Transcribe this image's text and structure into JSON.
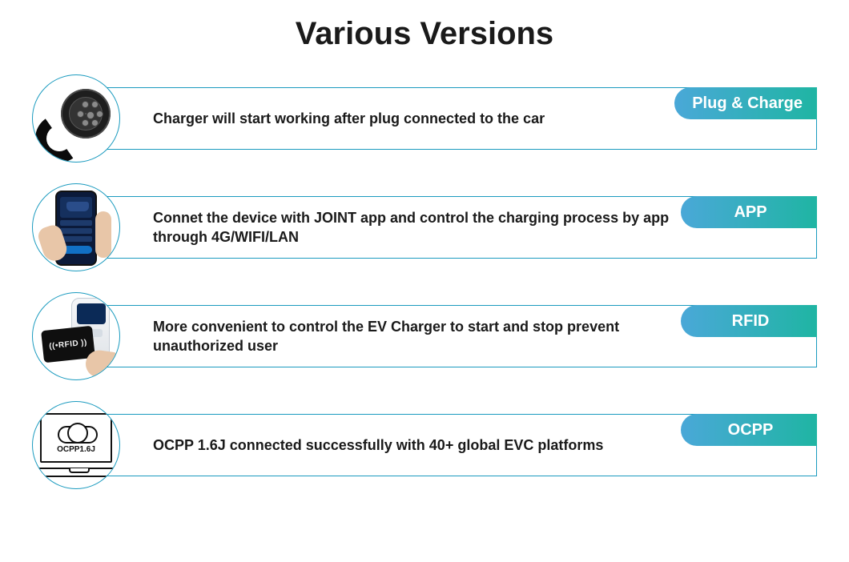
{
  "title": "Various Versions",
  "accent_gradient": [
    "#4aa8d8",
    "#1fb5a3"
  ],
  "border_color": "#1b9bbf",
  "text_color": "#1a1a1a",
  "items": [
    {
      "tag": "Plug & Charge",
      "desc": "Charger will start working after plug connected to the car",
      "icon": "plug"
    },
    {
      "tag": "APP",
      "desc": "Connet the device with JOINT app and control the charging process by app through 4G/WIFI/LAN",
      "icon": "phone"
    },
    {
      "tag": "RFID",
      "desc": "More convenient to control the EV Charger to start and stop prevent unauthorized user",
      "icon": "rfid",
      "rfid_label": "RFID"
    },
    {
      "tag": "OCPP",
      "desc": "OCPP 1.6J connected successfully with 40+ global EVC platforms",
      "icon": "laptop",
      "cloud_label": "OCPP1.6J"
    }
  ]
}
